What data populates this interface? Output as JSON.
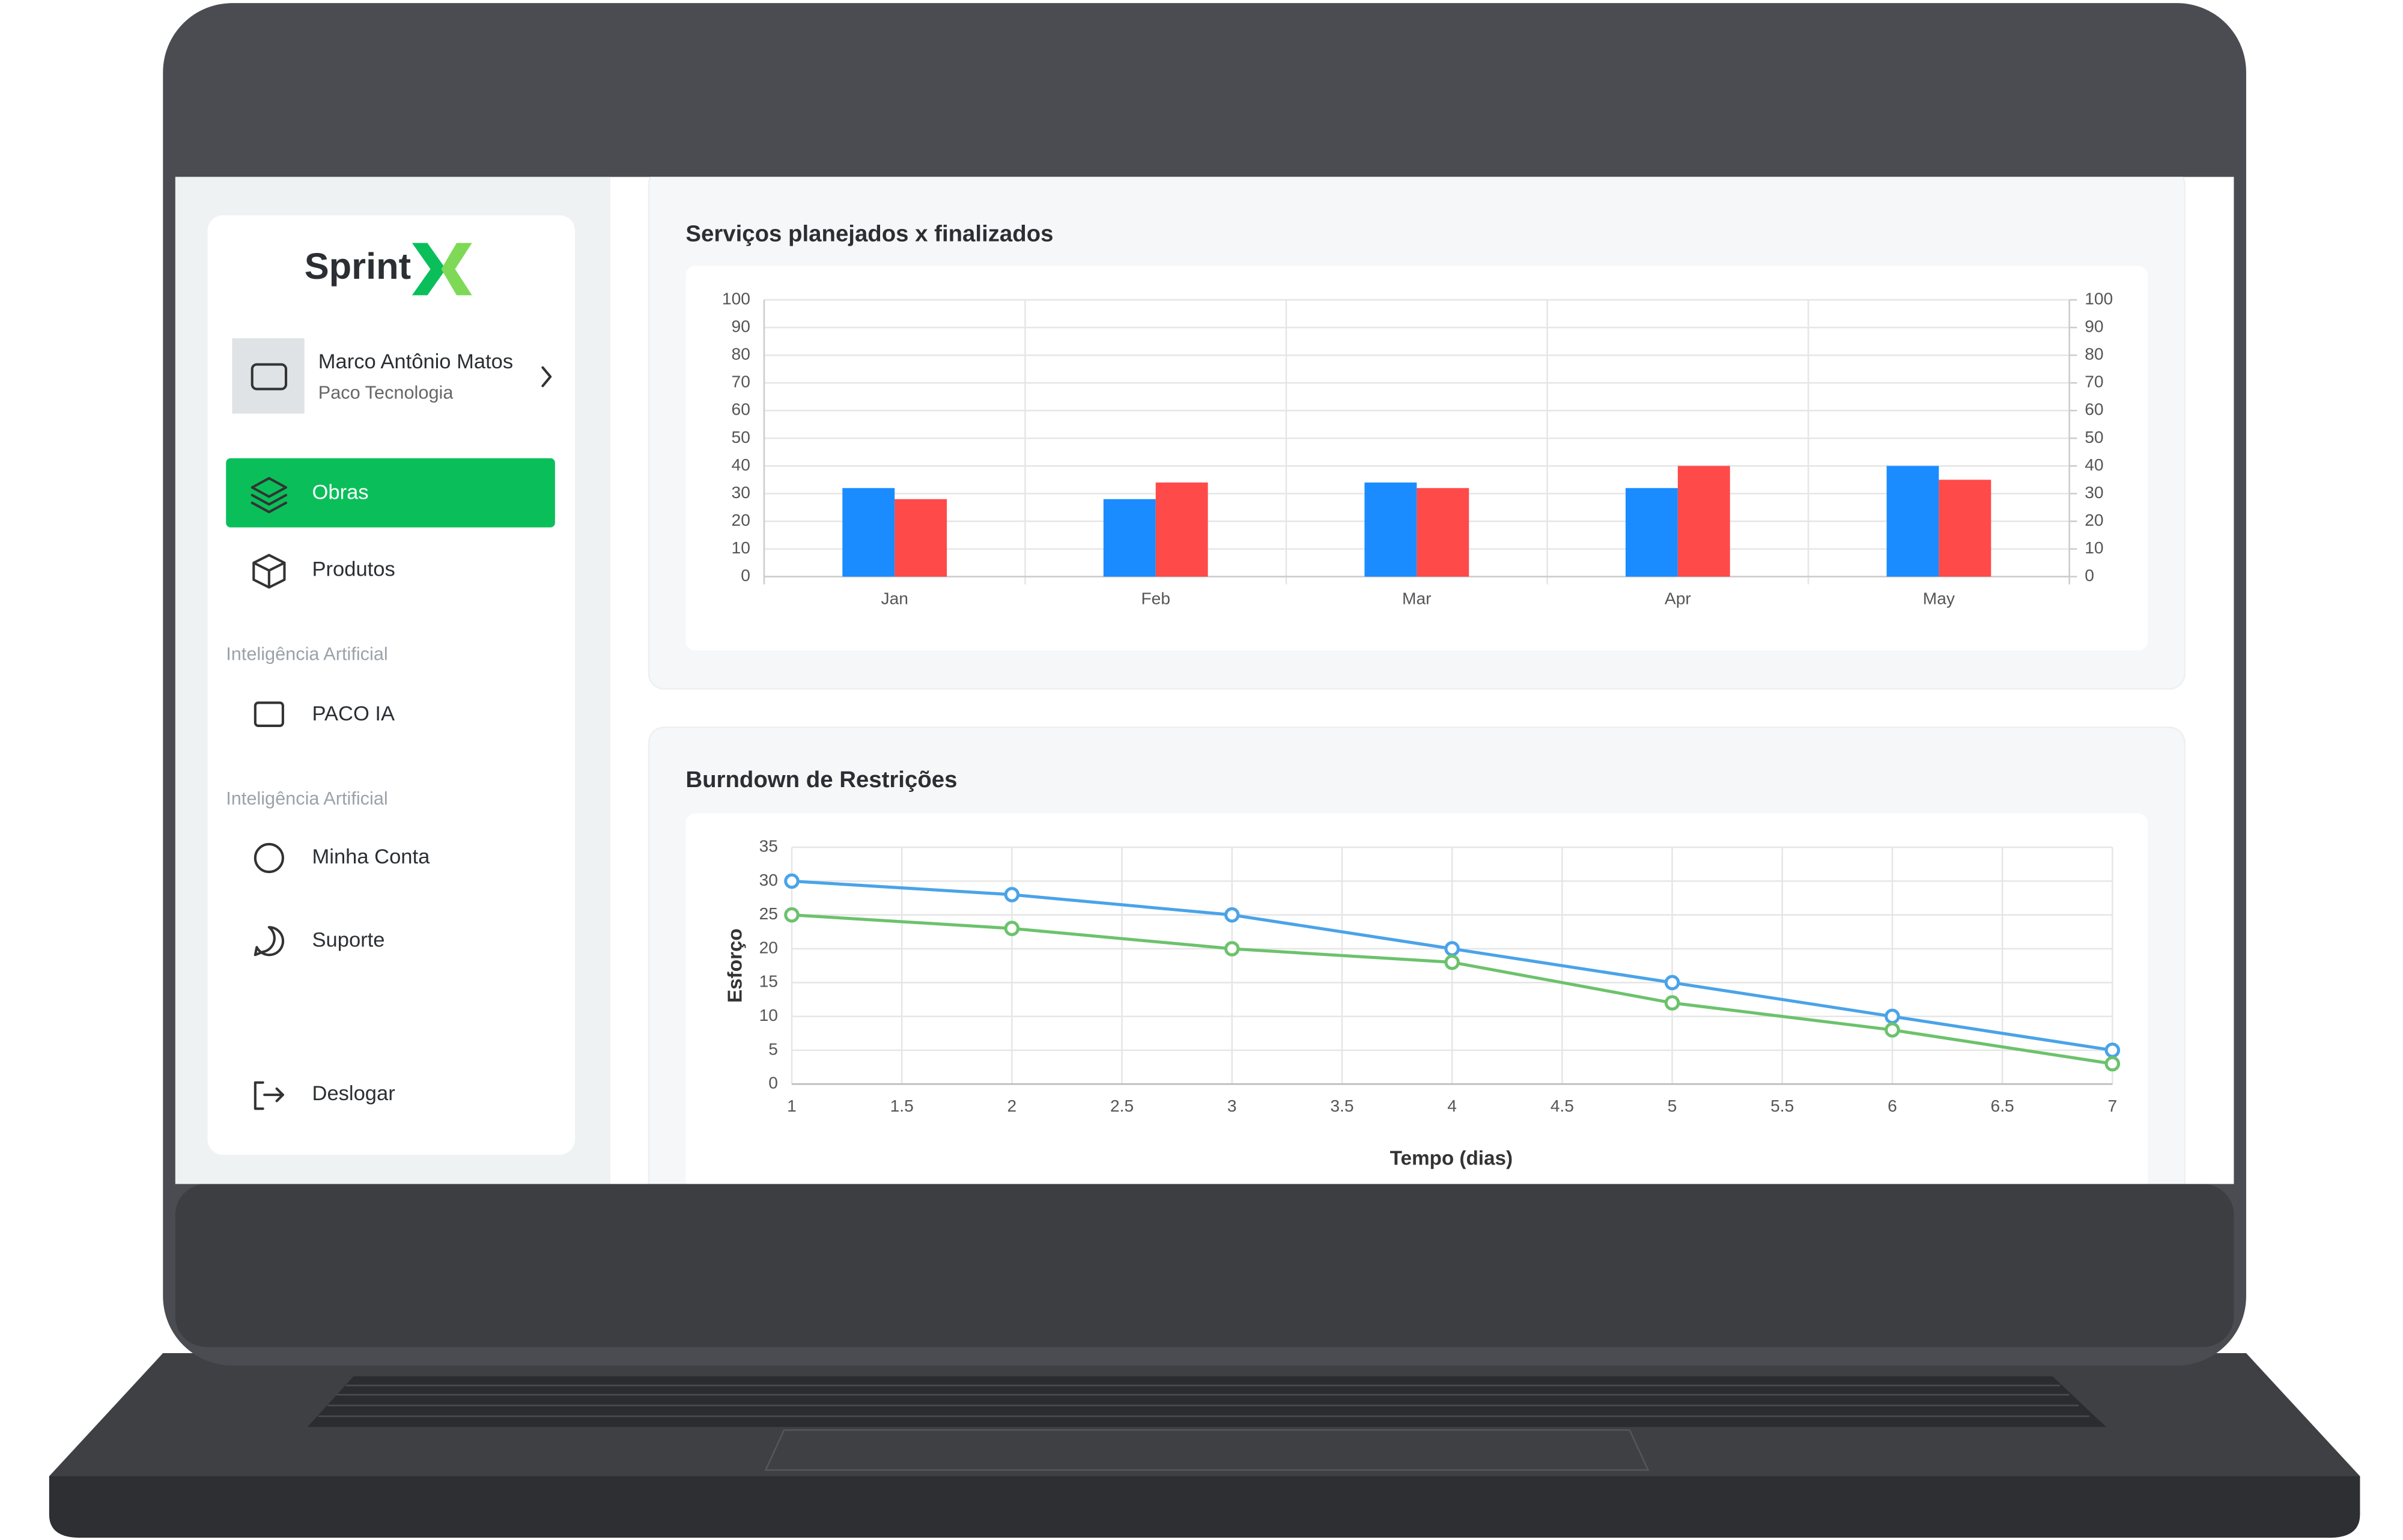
{
  "sidebar": {
    "logo": "Sprint",
    "user_name": "Marco Antônio Matos",
    "user_company": "Paco Tecnologia",
    "nav": [
      "Obras",
      "Produtos"
    ],
    "sections": [
      {
        "title": "Inteligência Artificial",
        "items": [
          "PACO IA"
        ]
      },
      {
        "title": "Inteligência Artificial",
        "items": [
          "Minha Conta",
          "Suporte"
        ]
      }
    ],
    "logout": "Deslogar"
  },
  "chart_data": [
    {
      "type": "bar",
      "title": "Serviços planejados x finalizados",
      "categories": [
        "Jan",
        "Feb",
        "Mar",
        "Apr",
        "May"
      ],
      "series": [
        {
          "color": "#1a8cff",
          "values": [
            32,
            28,
            34,
            32,
            40
          ]
        },
        {
          "color": "#ff4a4a",
          "values": [
            28,
            34,
            32,
            40,
            35
          ]
        }
      ],
      "ylim": [
        0,
        100
      ],
      "yticks": [
        0,
        10,
        20,
        30,
        40,
        50,
        60,
        70,
        80,
        90,
        100
      ],
      "y2lim": [
        0,
        100
      ],
      "y2ticks": [
        0,
        10,
        20,
        30,
        40,
        50,
        60,
        70,
        80,
        90,
        100
      ],
      "grid": true
    },
    {
      "type": "line",
      "title": "Burndown de Restrições",
      "xlabel": "Tempo (dias)",
      "ylabel": "Esforço",
      "x": [
        1,
        2,
        3,
        4,
        5,
        6,
        7
      ],
      "series": [
        {
          "color": "#4aa3e8",
          "values": [
            30,
            28,
            25,
            20,
            15,
            10,
            5
          ]
        },
        {
          "color": "#6cc26c",
          "values": [
            25,
            23,
            20,
            18,
            12,
            8,
            3
          ]
        }
      ],
      "xlim": [
        1,
        7
      ],
      "xticks": [
        1,
        1.5,
        2,
        2.5,
        3,
        3.5,
        4,
        4.5,
        5,
        5.5,
        6,
        6.5,
        7
      ],
      "ylim": [
        0,
        35
      ],
      "yticks": [
        0,
        5,
        10,
        15,
        20,
        25,
        30,
        35
      ],
      "grid": true
    }
  ]
}
